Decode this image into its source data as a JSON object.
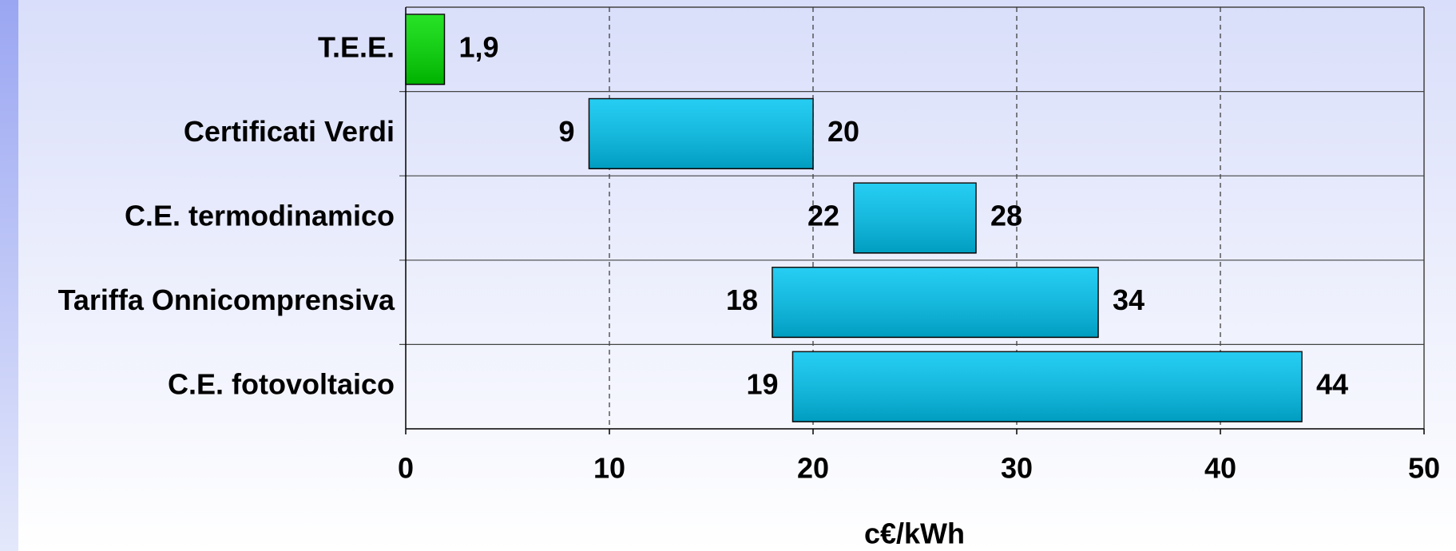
{
  "chart_data": {
    "type": "range-bar",
    "categories": [
      "T.E.E.",
      "Certificati Verdi",
      "C.E. termodinamico",
      "Tariffa Onnicomprensiva",
      "C.E. fotovoltaico"
    ],
    "low": {
      "values": [
        0,
        9,
        22,
        18,
        19
      ],
      "value_labels": [
        null,
        "9",
        "22",
        "18",
        "19"
      ]
    },
    "high": {
      "values": [
        1.9,
        20,
        28,
        34,
        44
      ],
      "value_labels": [
        "1,9",
        "20",
        "28",
        "34",
        "44"
      ]
    },
    "colors": [
      "#00dd00",
      "#00c4f0",
      "#00c4f0",
      "#00c4f0",
      "#00c4f0"
    ],
    "xlabel": "c€/kWh",
    "xlim": [
      0,
      50
    ],
    "xticks": [
      0,
      10,
      20,
      30,
      40,
      50
    ],
    "grid": true
  }
}
